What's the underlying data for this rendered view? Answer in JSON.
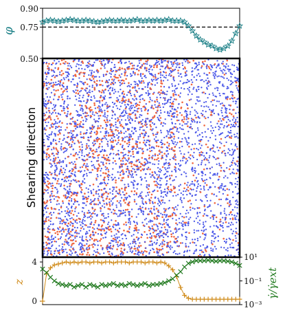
{
  "colors": {
    "phi": "#1a7f86",
    "blue_particle": "#4a57e8",
    "red_particle": "#f0663f",
    "z": "#d08b1a",
    "shear": "#217a1f",
    "dashed": "#000000"
  },
  "labels": {
    "phi_axis": "φ",
    "middle_axis": "Shearing direction",
    "z_axis": "z",
    "shear_axis": "γ̇/γ̇ext",
    "phi_ticks": [
      "0.90",
      "0.75",
      "0.50"
    ],
    "z_ticks": [
      "4",
      "0"
    ],
    "shear_ticks": [
      "10¹",
      "10⁻¹",
      "10⁻³"
    ]
  },
  "chart_data": [
    {
      "type": "line",
      "marker": "star",
      "ylabel": "φ",
      "ylim": [
        0.5,
        0.9
      ],
      "yticks": [
        "0.90",
        "0.75",
        "0.50"
      ],
      "reference_line": 0.75,
      "series": [
        {
          "x": [
            0,
            2,
            4,
            6,
            8,
            10,
            12,
            14,
            16,
            18,
            20,
            22,
            24,
            26,
            28,
            30,
            32,
            34,
            36,
            38,
            40,
            42,
            44,
            46,
            48,
            50,
            52,
            54,
            56,
            58,
            60,
            62,
            64,
            66,
            68,
            70,
            72,
            74,
            76,
            78,
            80,
            82,
            84,
            86,
            88,
            90,
            92,
            94,
            96,
            98,
            100
          ],
          "values": [
            0.79,
            0.8,
            0.805,
            0.8,
            0.795,
            0.8,
            0.805,
            0.81,
            0.805,
            0.8,
            0.8,
            0.805,
            0.8,
            0.795,
            0.79,
            0.795,
            0.8,
            0.805,
            0.8,
            0.8,
            0.805,
            0.8,
            0.8,
            0.805,
            0.81,
            0.8,
            0.8,
            0.805,
            0.8,
            0.805,
            0.8,
            0.805,
            0.81,
            0.8,
            0.8,
            0.8,
            0.79,
            0.76,
            0.72,
            0.68,
            0.65,
            0.63,
            0.61,
            0.6,
            0.58,
            0.57,
            0.58,
            0.6,
            0.64,
            0.7,
            0.76
          ]
        }
      ]
    },
    {
      "type": "scatter",
      "ylabel": "Shearing direction",
      "series": [
        {
          "color_key": "blue_particle",
          "fraction": 0.7
        },
        {
          "color_key": "red_particle",
          "fraction": 0.3
        }
      ]
    },
    {
      "type": "line",
      "marker": "plus",
      "ylabel": "z",
      "ylim": [
        -0.5,
        4.5
      ],
      "yticks": [
        "4",
        "0"
      ],
      "series": [
        {
          "x": [
            0,
            2,
            4,
            6,
            8,
            10,
            12,
            14,
            16,
            18,
            20,
            22,
            24,
            26,
            28,
            30,
            32,
            34,
            36,
            38,
            40,
            42,
            44,
            46,
            48,
            50,
            52,
            54,
            56,
            58,
            60,
            62,
            64,
            66,
            68,
            70,
            72,
            74,
            76,
            78,
            80,
            82,
            84,
            86,
            88,
            90,
            92,
            94,
            96,
            98,
            100
          ],
          "values": [
            0,
            2.8,
            3.4,
            3.7,
            3.8,
            3.9,
            4,
            3.9,
            4,
            3.9,
            4,
            4,
            3.9,
            4,
            4,
            3.9,
            4,
            4,
            3.9,
            4,
            4,
            4,
            3.9,
            4,
            4,
            4,
            3.9,
            4,
            4,
            3.9,
            4,
            3.9,
            3.6,
            3.2,
            2.5,
            1.4,
            0.6,
            0.3,
            0.2,
            0.2,
            0.2,
            0.2,
            0.2,
            0.2,
            0.2,
            0.2,
            0.2,
            0.2,
            0.2,
            0.2,
            0.2
          ]
        }
      ]
    },
    {
      "type": "line",
      "marker": "x",
      "ylabel": "γ̇/γ̇ext",
      "yscale": "log",
      "ylim": [
        0.001,
        10
      ],
      "yticks": [
        "10¹",
        "10⁻¹",
        "10⁻³"
      ],
      "series": [
        {
          "x": [
            0,
            2,
            4,
            6,
            8,
            10,
            12,
            14,
            16,
            18,
            20,
            22,
            24,
            26,
            28,
            30,
            32,
            34,
            36,
            38,
            40,
            42,
            44,
            46,
            48,
            50,
            52,
            54,
            56,
            58,
            60,
            62,
            64,
            66,
            68,
            70,
            72,
            74,
            76,
            78,
            80,
            82,
            84,
            86,
            88,
            90,
            92,
            94,
            96,
            98,
            100
          ],
          "values": [
            1,
            0.5,
            0.2,
            0.1,
            0.06,
            0.05,
            0.04,
            0.05,
            0.03,
            0.04,
            0.05,
            0.03,
            0.05,
            0.04,
            0.03,
            0.05,
            0.04,
            0.05,
            0.06,
            0.04,
            0.05,
            0.04,
            0.06,
            0.05,
            0.04,
            0.05,
            0.06,
            0.04,
            0.05,
            0.05,
            0.06,
            0.07,
            0.1,
            0.15,
            0.3,
            0.6,
            1.5,
            3,
            4,
            5,
            5,
            5,
            5.5,
            5,
            4.5,
            5,
            5,
            4.5,
            4,
            3,
            2
          ]
        }
      ]
    }
  ]
}
